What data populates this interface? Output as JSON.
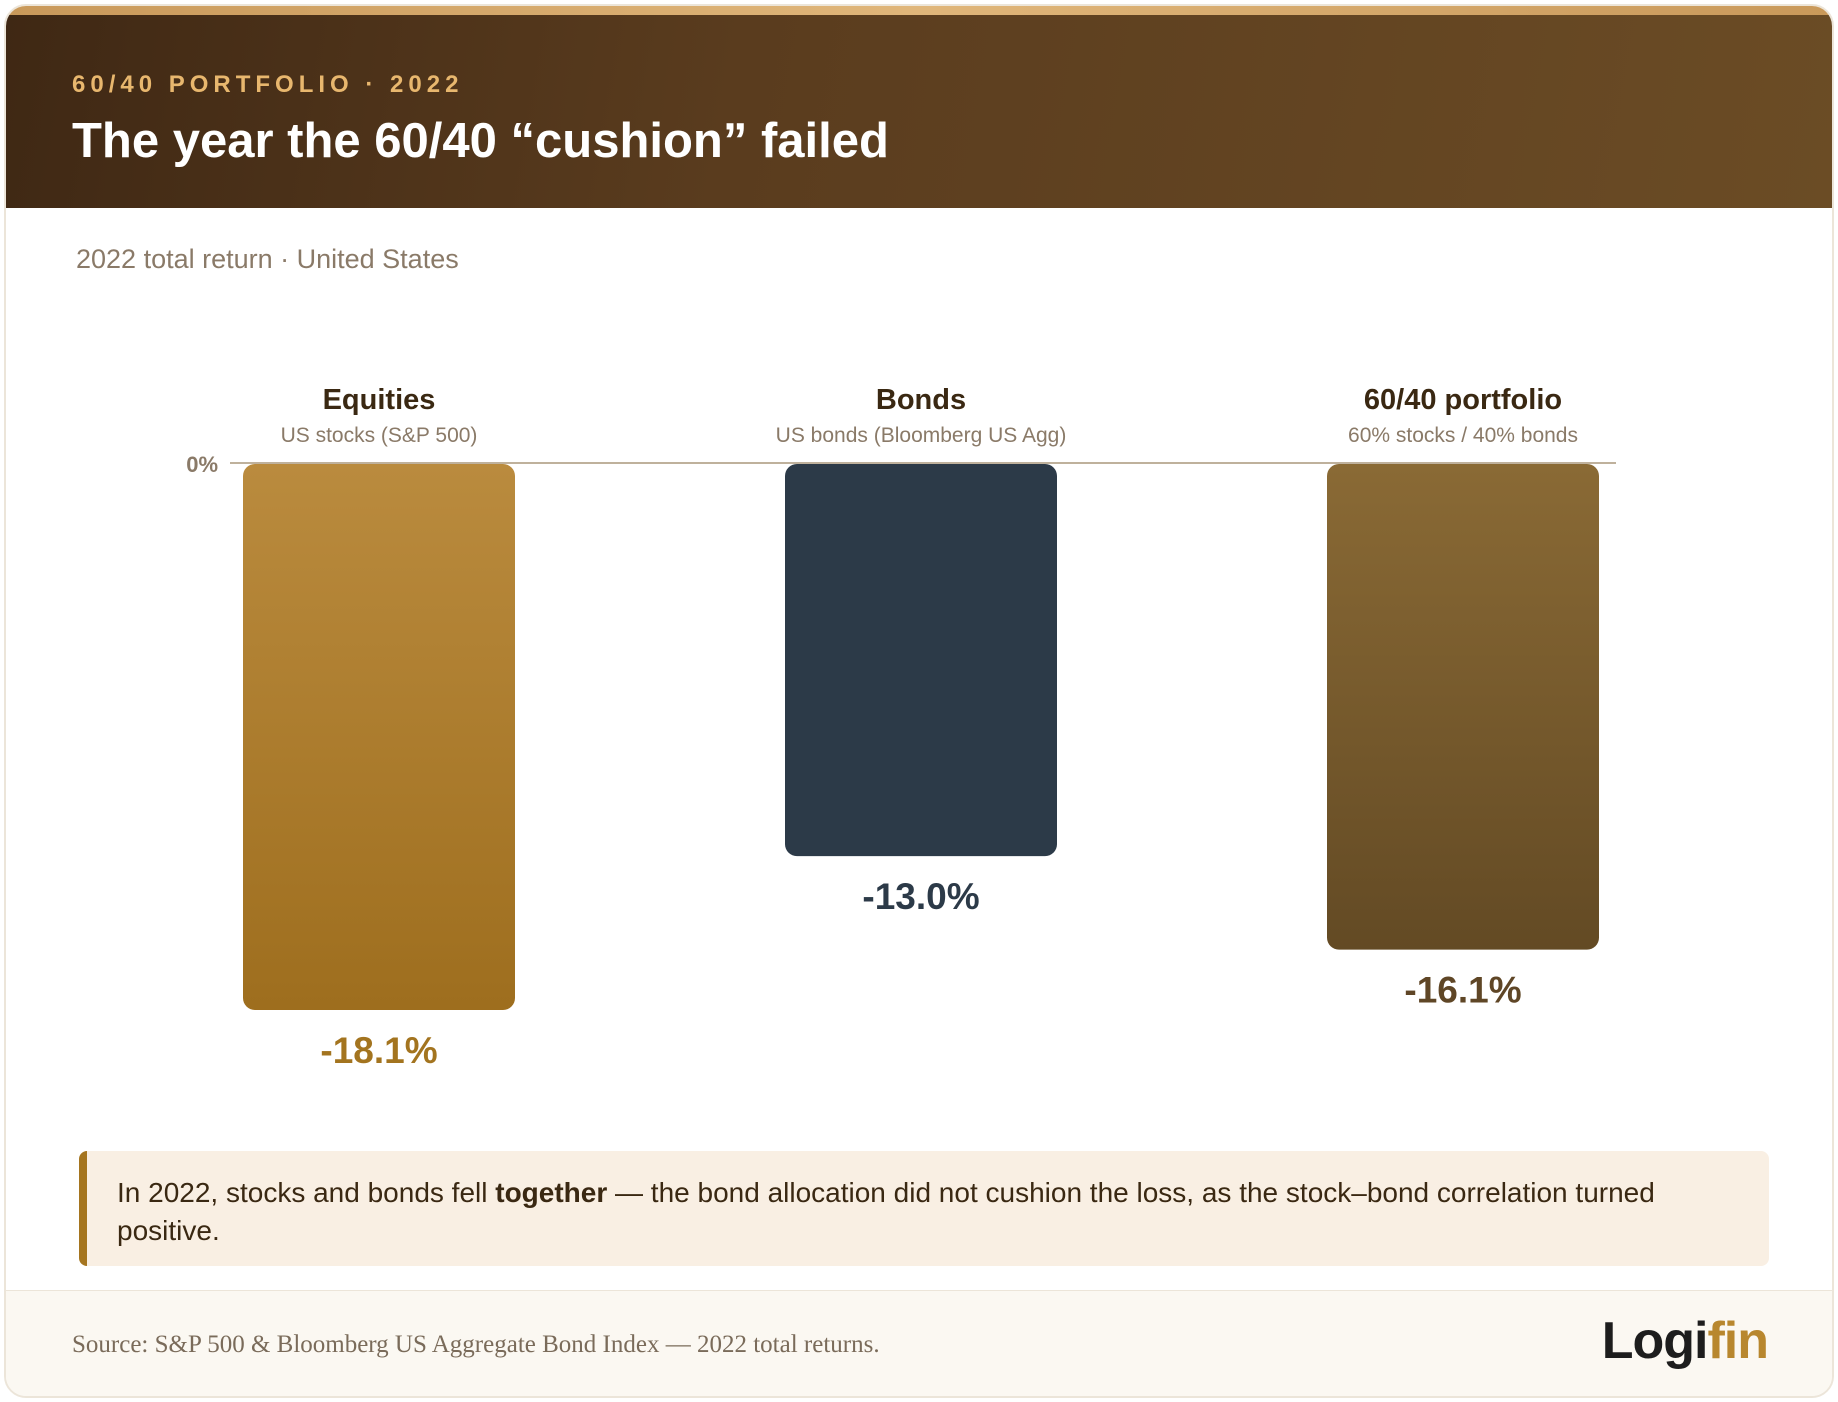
{
  "header": {
    "eyebrow": "60/40 PORTFOLIO · 2022",
    "title": "The year the 60/40 “cushion” failed"
  },
  "subtitle": "2022 total return · United States",
  "chart_data": {
    "type": "bar",
    "zero_label": "0%",
    "ylim": [
      -18.1,
      0
    ],
    "categories": [
      "Equities",
      "Bonds",
      "60/40 portfolio"
    ],
    "sublabels": [
      "US stocks (S&P 500)",
      "US bonds (Bloomberg US Agg)",
      "60% stocks / 40% bonds"
    ],
    "values": [
      -18.1,
      -13.0,
      -16.1
    ],
    "value_labels": [
      "-18.1%",
      "-13.0%",
      "-16.1%"
    ],
    "colors": {
      "equities_top": "#ba8b3e",
      "equities_bottom": "#9e6e1e",
      "bonds": "#2c3a48",
      "portfolio_top": "#8a6a35",
      "portfolio_bottom": "#634a24",
      "equities_label": "#a3741f",
      "bonds_label": "#2c3a48",
      "portfolio_label": "#5f4626"
    }
  },
  "callout": {
    "before": "In 2022, stocks and bonds fell ",
    "bold": "together",
    "after": " — the bond allocation did not cushion the loss, as the stock–bond correlation turned positive."
  },
  "footer": {
    "source": "Source: S&P 500 & Bloomberg US Aggregate Bond Index — 2022 total returns.",
    "logo_main": "Logi",
    "logo_accent": "fin"
  }
}
